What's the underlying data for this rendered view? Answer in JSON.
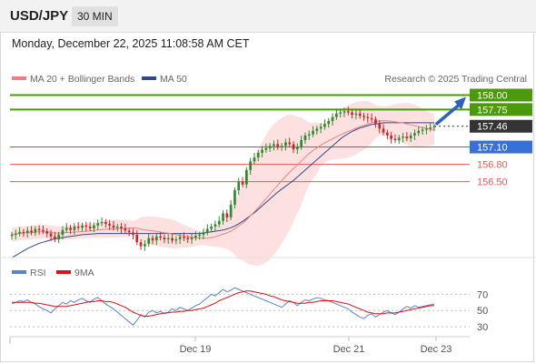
{
  "header": {
    "symbol": "USD/JPY",
    "interval": "30 MIN",
    "datetime": "Monday, December 22, 2025 11:08:58 AM CET"
  },
  "legend": {
    "ma20_label": "MA 20 + Bollinger Bands",
    "ma50_label": "MA 50",
    "credit": "Research © 2025 Trading Central",
    "rsi_label": "RSI",
    "rsi_ma_label": "9MA"
  },
  "colors": {
    "resistance": "#4a9a0c",
    "current_price": "#333333",
    "support_primary": "#3a6fd8",
    "support_secondary": "#e35a5a",
    "ma20": "#f08080",
    "ma50": "#2e4a8c",
    "bollinger_fill": "#fcd9d9",
    "candle_up": "#2f8a2f",
    "candle_down": "#c62828",
    "rsi": "#5b7fd4",
    "rsi_ma": "#dd1111",
    "arrow": "#2e62b8"
  },
  "chart_data": [
    {
      "type": "candlestick",
      "title": "USD/JPY",
      "x_ticks": [
        "Dec 19",
        "Dec 21",
        "Dec 23"
      ],
      "ylim": [
        155.2,
        158.15
      ],
      "levels": [
        {
          "label": "158.00",
          "value": 158.0,
          "kind": "resistance"
        },
        {
          "label": "157.75",
          "value": 157.75,
          "kind": "resistance"
        },
        {
          "label": "157.46",
          "value": 157.46,
          "kind": "current"
        },
        {
          "label": "157.10",
          "value": 157.1,
          "kind": "support_primary"
        },
        {
          "label": "156.80",
          "value": 156.8,
          "kind": "support_secondary"
        },
        {
          "label": "156.50",
          "value": 156.5,
          "kind": "support_secondary"
        }
      ],
      "close": [
        155.58,
        155.6,
        155.63,
        155.61,
        155.65,
        155.62,
        155.68,
        155.66,
        155.64,
        155.6,
        155.55,
        155.5,
        155.58,
        155.66,
        155.7,
        155.66,
        155.72,
        155.7,
        155.74,
        155.72,
        155.69,
        155.74,
        155.78,
        155.8,
        155.77,
        155.74,
        155.7,
        155.72,
        155.69,
        155.65,
        155.62,
        155.58,
        155.45,
        155.38,
        155.42,
        155.52,
        155.48,
        155.55,
        155.53,
        155.5,
        155.52,
        155.48,
        155.5,
        155.54,
        155.52,
        155.5,
        155.53,
        155.56,
        155.58,
        155.62,
        155.68,
        155.72,
        155.76,
        155.82,
        155.95,
        155.88,
        156.1,
        156.35,
        156.5,
        156.45,
        156.7,
        156.85,
        156.92,
        157.0,
        157.05,
        157.08,
        157.12,
        157.15,
        157.1,
        157.12,
        157.18,
        157.15,
        157.06,
        157.1,
        157.22,
        157.3,
        157.32,
        157.38,
        157.42,
        157.45,
        157.5,
        157.55,
        157.62,
        157.68,
        157.7,
        157.72,
        157.7,
        157.66,
        157.68,
        157.64,
        157.62,
        157.6,
        157.58,
        157.5,
        157.42,
        157.35,
        157.3,
        157.24,
        157.22,
        157.26,
        157.28,
        157.25,
        157.3,
        157.34,
        157.38,
        157.4,
        157.42,
        157.44,
        157.46
      ],
      "ma50": [
        155.18,
        155.22,
        155.26,
        155.3,
        155.34,
        155.37,
        155.4,
        155.43,
        155.45,
        155.47,
        155.49,
        155.51,
        155.52,
        155.53,
        155.54,
        155.55,
        155.56,
        155.57,
        155.58,
        155.585,
        155.59,
        155.595,
        155.6,
        155.6,
        155.6,
        155.6,
        155.6,
        155.6,
        155.6,
        155.6,
        155.6,
        155.6,
        155.6,
        155.6,
        155.6,
        155.6,
        155.6,
        155.6,
        155.6,
        155.6,
        155.6,
        155.6,
        155.6,
        155.6,
        155.6,
        155.6,
        155.6,
        155.6,
        155.6,
        155.61,
        155.62,
        155.63,
        155.64,
        155.65,
        155.66,
        155.68,
        155.7,
        155.73,
        155.77,
        155.81,
        155.86,
        155.91,
        155.96,
        156.02,
        156.08,
        156.14,
        156.2,
        156.26,
        156.32,
        156.37,
        156.42,
        156.47,
        156.52,
        156.58,
        156.64,
        156.7,
        156.76,
        156.82,
        156.88,
        156.94,
        157.0,
        157.06,
        157.12,
        157.18,
        157.24,
        157.29,
        157.33,
        157.37,
        157.4,
        157.43,
        157.45,
        157.47,
        157.49,
        157.5,
        157.51,
        157.52,
        157.52,
        157.52,
        157.52,
        157.52,
        157.52,
        157.52,
        157.52,
        157.52,
        157.52,
        157.52,
        157.52,
        157.52,
        157.52
      ]
    },
    {
      "type": "line",
      "title": "RSI",
      "y_ticks": [
        70,
        50,
        30
      ],
      "ylim": [
        20,
        85
      ],
      "series": [
        {
          "name": "RSI",
          "values": [
            58,
            60,
            62,
            61,
            63,
            60,
            58,
            55,
            52,
            50,
            47,
            52,
            56,
            60,
            58,
            62,
            60,
            63,
            65,
            62,
            60,
            64,
            66,
            62,
            58,
            55,
            52,
            48,
            44,
            40,
            36,
            32,
            38,
            45,
            42,
            48,
            50,
            47,
            49,
            46,
            48,
            52,
            50,
            54,
            52,
            50,
            53,
            56,
            58,
            62,
            66,
            70,
            68,
            72,
            76,
            73,
            75,
            78,
            76,
            74,
            72,
            70,
            68,
            66,
            64,
            62,
            60,
            58,
            56,
            54,
            58,
            62,
            60,
            56,
            60,
            63,
            62,
            64,
            66,
            65,
            63,
            62,
            60,
            58,
            56,
            54,
            52,
            48,
            45,
            42,
            40,
            44,
            46,
            42,
            45,
            48,
            50,
            47,
            45,
            48,
            52,
            55,
            53,
            56,
            54,
            55,
            56,
            57,
            58
          ]
        },
        {
          "name": "9MA",
          "values": [
            60,
            60,
            60,
            60,
            60,
            60,
            59,
            59,
            58,
            57,
            56,
            55,
            55,
            55,
            55,
            56,
            57,
            58,
            59,
            60,
            61,
            61,
            62,
            62,
            61,
            61,
            60,
            58,
            56,
            54,
            51,
            48,
            46,
            44,
            43,
            43,
            44,
            45,
            46,
            47,
            47,
            48,
            48,
            49,
            49,
            50,
            50,
            51,
            52,
            53,
            55,
            57,
            59,
            62,
            64,
            66,
            68,
            70,
            72,
            73,
            74,
            74,
            73,
            72,
            71,
            70,
            68,
            67,
            65,
            63,
            62,
            61,
            60,
            59,
            59,
            59,
            60,
            60,
            61,
            62,
            62,
            62,
            62,
            61,
            60,
            59,
            58,
            56,
            54,
            52,
            50,
            48,
            47,
            46,
            46,
            46,
            47,
            47,
            47,
            48,
            49,
            50,
            51,
            52,
            53,
            54,
            55,
            56,
            56
          ]
        }
      ]
    }
  ]
}
